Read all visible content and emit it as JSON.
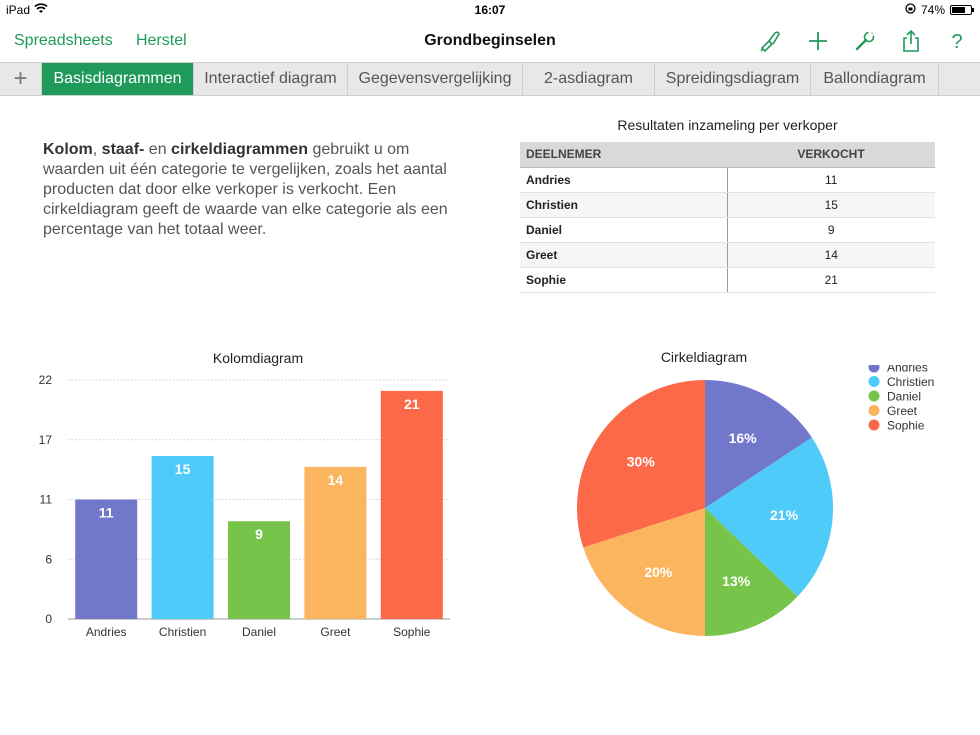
{
  "status_bar": {
    "device": "iPad",
    "time": "16:07",
    "battery": "74%",
    "battery_level": 0.74
  },
  "nav": {
    "back_label": "Spreadsheets",
    "undo_label": "Herstel",
    "title": "Grondbeginselen",
    "icons": [
      "format-brush-icon",
      "plus-icon",
      "wrench-icon",
      "share-icon",
      "help-icon"
    ]
  },
  "tabs": {
    "add_symbol": "+",
    "items": [
      {
        "label": "Basisdiagrammen",
        "active": true
      },
      {
        "label": "Interactief diagram",
        "active": false
      },
      {
        "label": "Gegevensvergelijking",
        "active": false
      },
      {
        "label": "2-asdiagram",
        "active": false
      },
      {
        "label": "Spreidingsdiagram",
        "active": false
      },
      {
        "label": "Ballondiagram",
        "active": false
      }
    ]
  },
  "description": {
    "b1": "Kolom",
    "t1": ", ",
    "b2": "staaf-",
    "t2": " en ",
    "b3": "cirkeldiagrammen",
    "t3": " gebruikt u om waarden uit één categorie te vergelijken, zoals het aantal producten dat door elke verkoper is verkocht. Een cirkeldiagram geeft de waarde van elke categorie als een percentage van het totaal weer."
  },
  "table": {
    "title": "Resultaten inzameling per verkoper",
    "headers": [
      "DEELNEMER",
      "VERKOCHT"
    ],
    "rows": [
      {
        "name": "Andries",
        "value": "11"
      },
      {
        "name": "Christien",
        "value": "15"
      },
      {
        "name": "Daniel",
        "value": "9"
      },
      {
        "name": "Greet",
        "value": "14"
      },
      {
        "name": "Sophie",
        "value": "21"
      }
    ]
  },
  "colors": {
    "accent": "#1f9a5a",
    "series": [
      "#7178cc",
      "#4ecbf8",
      "#77c44b",
      "#fbb55e",
      "#fc6949"
    ]
  },
  "chart_data": [
    {
      "type": "bar",
      "title": "Kolomdiagram",
      "categories": [
        "Andries",
        "Christien",
        "Daniel",
        "Greet",
        "Sophie"
      ],
      "values": [
        11,
        15,
        9,
        14,
        21
      ],
      "data_labels": [
        "11",
        "15",
        "9",
        "14",
        "21"
      ],
      "yticks": [
        "0",
        "6",
        "11",
        "17",
        "22"
      ],
      "ytick_values": [
        0,
        5.5,
        11,
        16.5,
        22
      ],
      "ylim": [
        0,
        22
      ],
      "grid": true,
      "xlabel": "",
      "ylabel": ""
    },
    {
      "type": "pie",
      "title": "Cirkeldiagram",
      "labels": [
        "Andries",
        "Christien",
        "Daniel",
        "Greet",
        "Sophie"
      ],
      "values": [
        11,
        15,
        9,
        14,
        21
      ],
      "percent_labels": [
        "16%",
        "21%",
        "13%",
        "20%",
        "30%"
      ],
      "legend": "top-right"
    }
  ]
}
